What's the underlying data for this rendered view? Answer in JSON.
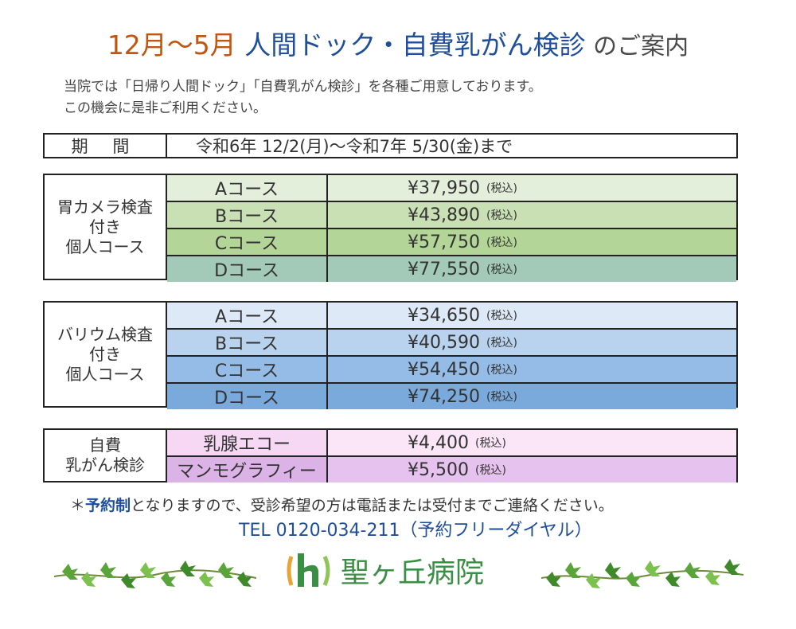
{
  "title": {
    "part1": "12月〜5月 ",
    "part2": "人間ドック・自費乳がん検診",
    "part3": " のご案内"
  },
  "intro": {
    "line1": "当院では「日帰り人間ドック」「自費乳がん検診」を各種ご用意しております。",
    "line2": "この機会に是非ご利用ください。"
  },
  "period": {
    "label": "期 間",
    "value": "令和6年 12/2(月)〜令和7年 5/30(金)まで"
  },
  "tax_label": "(税込)",
  "blocks": [
    {
      "category": [
        "胃カメラ検査",
        "付き",
        "個人コース"
      ],
      "rows": [
        {
          "course": "Aコース",
          "price": "¥37,950",
          "course_color": "#e3efdb",
          "price_color": "#e3efdb"
        },
        {
          "course": "Bコース",
          "price": "¥43,890",
          "course_color": "#c9e0b4",
          "price_color": "#c9e0b4"
        },
        {
          "course": "Cコース",
          "price": "¥57,750",
          "course_color": "#b4d598",
          "price_color": "#b4d598"
        },
        {
          "course": "Dコース",
          "price": "¥77,550",
          "course_color": "#a3cab8",
          "price_color": "#a3cab8"
        }
      ]
    },
    {
      "category": [
        "バリウム検査",
        "付き",
        "個人コース"
      ],
      "rows": [
        {
          "course": "Aコース",
          "price": "¥34,650",
          "course_color": "#dde9f6",
          "price_color": "#dde9f6"
        },
        {
          "course": "Bコース",
          "price": "¥40,590",
          "course_color": "#b9d2ee",
          "price_color": "#b9d2ee"
        },
        {
          "course": "Cコース",
          "price": "¥54,450",
          "course_color": "#95bce6",
          "price_color": "#95bce6"
        },
        {
          "course": "Dコース",
          "price": "¥74,250",
          "course_color": "#7aa9dc",
          "price_color": "#7aa9dc"
        }
      ]
    },
    {
      "category": [
        "自費",
        "乳がん検診"
      ],
      "rows": [
        {
          "course": "乳腺エコー",
          "price": "¥4,400",
          "course_color": "#f6d8f4",
          "price_color": "#fbe6f8"
        },
        {
          "course": "マンモグラフィー",
          "price": "¥5,500",
          "course_color": "#dcb3e6",
          "price_color": "#e6c2ee"
        }
      ]
    }
  ],
  "note": {
    "prefix": "＊",
    "highlight": "予約制",
    "rest": "となりますので、受診希望の方は電話または受付までご連絡ください。"
  },
  "tel": "TEL  0120-034-211（予約フリーダイヤル）",
  "logo": {
    "name": "聖ヶ丘病院",
    "icon": "hospital-logo-icon",
    "color": "#3a8f44"
  },
  "decoration": {
    "left_icon": "ivy-vine-icon",
    "right_icon": "ivy-vine-icon"
  }
}
